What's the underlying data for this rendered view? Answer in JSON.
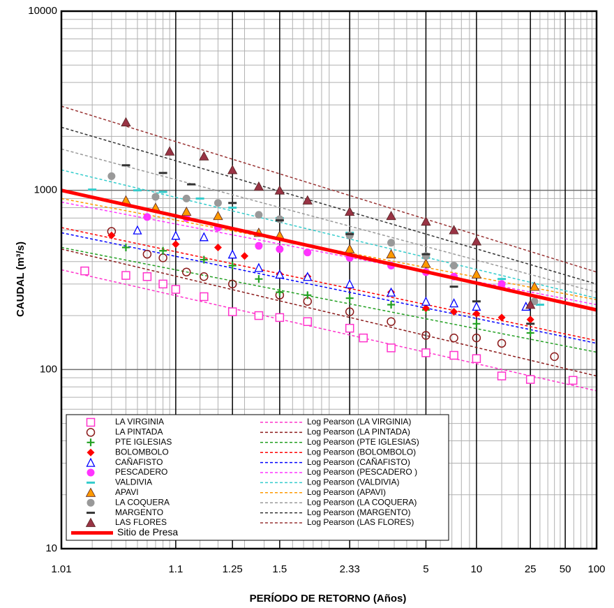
{
  "chart_data": {
    "type": "scatter",
    "x_label": "PERÍODO DE RETORNO (Años)",
    "y_label": "CAUDAL (m³/s)",
    "x_scale": "normal-probability",
    "y_scale": "log",
    "xlim": [
      1.01,
      100
    ],
    "ylim": [
      10,
      10000
    ],
    "xticks": [
      1.01,
      1.1,
      1.25,
      1.5,
      2.33,
      5,
      10,
      25,
      50,
      100
    ],
    "yticks": [
      10,
      100,
      1000,
      10000
    ],
    "minor_xticks": [
      1.02,
      1.03,
      1.04,
      1.05,
      1.06,
      1.07,
      1.08,
      1.09,
      1.15,
      1.2,
      1.3,
      1.4,
      1.6,
      1.7,
      1.8,
      1.9,
      2,
      2.5,
      3,
      3.5,
      4,
      4.5,
      6,
      7,
      8,
      9,
      15,
      20,
      30,
      35,
      40,
      45,
      60,
      70,
      80,
      90
    ],
    "minor_yticks": [
      20,
      30,
      40,
      50,
      60,
      70,
      80,
      90,
      200,
      300,
      400,
      500,
      600,
      700,
      800,
      900,
      2000,
      3000,
      4000,
      5000,
      6000,
      7000,
      8000,
      9000
    ],
    "grid": true,
    "legend": "lower left",
    "series": [
      {
        "name": "LA VIRGINIA",
        "marker": "square-open",
        "color": "#ff33cc",
        "x": [
          1.017,
          1.04,
          1.06,
          1.08,
          1.1,
          1.16,
          1.25,
          1.37,
          1.5,
          1.74,
          2.33,
          2.61,
          3.39,
          5,
          7.2,
          10,
          15,
          25,
          59
        ],
        "values": [
          355,
          335,
          330,
          300,
          280,
          255,
          210,
          200,
          195,
          185,
          170,
          150,
          132,
          124,
          120,
          115,
          92,
          88,
          87
        ]
      },
      {
        "name": "LA PINTADA",
        "marker": "circle-open",
        "color": "#8b1a1a",
        "x": [
          1.03,
          1.06,
          1.08,
          1.12,
          1.16,
          1.25,
          1.5,
          1.74,
          2.33,
          3.39,
          5,
          7.2,
          10,
          15,
          40
        ],
        "values": [
          590,
          440,
          420,
          350,
          330,
          300,
          260,
          240,
          210,
          185,
          155,
          150,
          150,
          140,
          118
        ]
      },
      {
        "name": "PTE IGLESIAS",
        "marker": "plus",
        "color": "#22a022",
        "x": [
          1.04,
          1.08,
          1.16,
          1.25,
          1.37,
          1.5,
          1.74,
          2.33,
          3.39,
          5,
          10,
          25
        ],
        "values": [
          480,
          460,
          410,
          380,
          320,
          270,
          260,
          250,
          230,
          215,
          180,
          160
        ]
      },
      {
        "name": "BOLOMBOLO",
        "marker": "diamond",
        "color": "#ff0000",
        "x": [
          1.03,
          1.1,
          1.2,
          1.3,
          1.5,
          1.74,
          2.33,
          3.39,
          5,
          7.2,
          10,
          15,
          25
        ],
        "values": [
          560,
          500,
          480,
          430,
          340,
          330,
          290,
          270,
          220,
          210,
          205,
          195,
          190
        ]
      },
      {
        "name": "CAÑAFISTO",
        "marker": "triangle-open",
        "color": "#0000ff",
        "x": [
          1.05,
          1.1,
          1.16,
          1.25,
          1.37,
          1.5,
          1.74,
          2.33,
          3.39,
          5,
          7.2,
          10,
          23
        ],
        "values": [
          600,
          560,
          550,
          440,
          370,
          340,
          330,
          300,
          270,
          240,
          235,
          225,
          225
        ]
      },
      {
        "name": "PESCADERO",
        "marker": "circle",
        "color": "#ff33ff",
        "x": [
          1.06,
          1.12,
          1.2,
          1.37,
          1.5,
          1.74,
          2.33,
          3.39,
          5,
          7.2,
          15
        ],
        "values": [
          710,
          700,
          620,
          490,
          470,
          450,
          420,
          380,
          350,
          330,
          300
        ]
      },
      {
        "name": "VALDIVIA",
        "marker": "dash",
        "color": "#33cccc",
        "x": [
          1.02,
          1.05,
          1.08,
          1.15,
          1.25,
          1.5,
          2.33,
          5,
          7.2,
          15,
          30
        ],
        "values": [
          1010,
          1000,
          980,
          900,
          800,
          700,
          580,
          420,
          380,
          320,
          230
        ]
      },
      {
        "name": "APAVI",
        "marker": "triangle",
        "color": "#ff9900",
        "x": [
          1.04,
          1.07,
          1.12,
          1.2,
          1.37,
          1.5,
          2.33,
          3.39,
          5,
          10,
          27
        ],
        "values": [
          880,
          800,
          760,
          720,
          580,
          560,
          470,
          440,
          390,
          340,
          290
        ]
      },
      {
        "name": "LA COQUERA",
        "marker": "circle",
        "color": "#999999",
        "x": [
          1.03,
          1.07,
          1.12,
          1.2,
          1.37,
          1.5,
          2.33,
          3.39,
          5,
          7.2,
          27
        ],
        "values": [
          1200,
          920,
          900,
          850,
          730,
          690,
          560,
          510,
          430,
          380,
          240
        ]
      },
      {
        "name": "MARGENTO",
        "marker": "dash",
        "color": "#333333",
        "x": [
          1.04,
          1.08,
          1.13,
          1.25,
          1.5,
          2.33,
          5,
          7.2,
          10,
          25
        ],
        "values": [
          1380,
          1250,
          1080,
          850,
          680,
          570,
          440,
          290,
          240,
          180
        ]
      },
      {
        "name": "LAS FLORES",
        "marker": "triangle",
        "color": "#993344",
        "x": [
          1.04,
          1.09,
          1.16,
          1.25,
          1.37,
          1.5,
          1.74,
          2.33,
          3.39,
          5,
          7.2,
          10,
          25
        ],
        "values": [
          2400,
          1650,
          1550,
          1300,
          1050,
          1000,
          880,
          760,
          720,
          670,
          600,
          520,
          230
        ]
      }
    ],
    "fits": [
      {
        "name": "Log Pearson (LA VIRGINIA)",
        "color": "#ff33cc",
        "x": [
          1.01,
          100
        ],
        "values": [
          360,
          76
        ]
      },
      {
        "name": "Log Pearson (LA PINTADA)",
        "color": "#8b1a1a",
        "x": [
          1.01,
          100
        ],
        "values": [
          470,
          92
        ]
      },
      {
        "name": "Log Pearson (PTE IGLESIAS)",
        "color": "#22a022",
        "x": [
          1.01,
          100
        ],
        "values": [
          480,
          125
        ]
      },
      {
        "name": "Log Pearson (BOLOMBOLO)",
        "color": "#ff0000",
        "x": [
          1.01,
          100
        ],
        "values": [
          620,
          145
        ]
      },
      {
        "name": "Log Pearson (CAÑAFISTO)",
        "color": "#0000ff",
        "x": [
          1.01,
          100
        ],
        "values": [
          580,
          140
        ]
      },
      {
        "name": "Log Pearson (PESCADERO )",
        "color": "#ff33ff",
        "x": [
          1.01,
          100
        ],
        "values": [
          860,
          230
        ]
      },
      {
        "name": "Log Pearson (VALDIVIA)",
        "color": "#33cccc",
        "x": [
          1.01,
          100
        ],
        "values": [
          1300,
          250
        ]
      },
      {
        "name": "Log Pearson (APAVI)",
        "color": "#ff9900",
        "x": [
          1.01,
          100
        ],
        "values": [
          900,
          245
        ]
      },
      {
        "name": "Log Pearson (LA COQUERA)",
        "color": "#999999",
        "x": [
          1.01,
          100
        ],
        "values": [
          1700,
          270
        ]
      },
      {
        "name": "Log Pearson (MARGENTO)",
        "color": "#333333",
        "x": [
          1.01,
          100
        ],
        "values": [
          2250,
          300
        ]
      },
      {
        "name": "Log Pearson (LAS FLORES)",
        "color": "#993333",
        "x": [
          1.01,
          100
        ],
        "values": [
          2950,
          350
        ]
      }
    ],
    "reference": {
      "name": "Sitio de Presa",
      "color": "#ff0000",
      "x": [
        1.01,
        100
      ],
      "values": [
        1000,
        215
      ]
    }
  }
}
